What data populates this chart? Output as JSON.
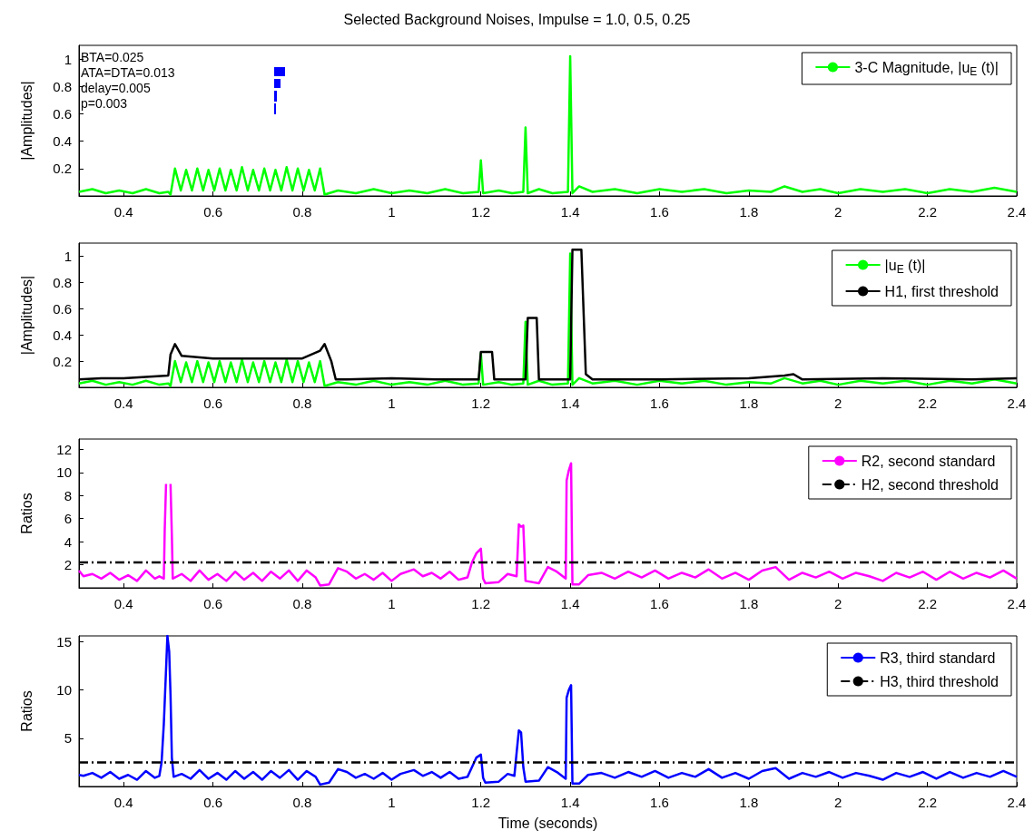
{
  "chart_data": [
    {
      "type": "line",
      "title": "Selected Background Noises, Impulse = 1.0, 0.5, 0.25",
      "ylabel": "|Amplitudes|",
      "annotations": [
        "BTA=0.025",
        "ATA=DTA=0.013",
        "delay=0.005",
        "p=0.003"
      ],
      "legend": "top right",
      "marker": "none",
      "line_style": "solid",
      "grid": false,
      "xlim": [
        0.3,
        2.4
      ],
      "ylim": [
        0,
        1.1
      ],
      "xticks": [
        0.4,
        0.6,
        0.8,
        1,
        1.2,
        1.4,
        1.6,
        1.8,
        2,
        2.2,
        2.4
      ],
      "yticks": [
        0.2,
        0.4,
        0.6,
        0.8,
        1
      ],
      "series": [
        {
          "name": "3-C Magnitude, |u$_{E}$ (t)|",
          "color": "#00ff00",
          "x": [
            0.3,
            0.33,
            0.36,
            0.39,
            0.42,
            0.45,
            0.48,
            0.5,
            0.505,
            0.515,
            0.528,
            0.54,
            0.553,
            0.565,
            0.578,
            0.59,
            0.603,
            0.615,
            0.628,
            0.64,
            0.653,
            0.665,
            0.678,
            0.69,
            0.703,
            0.715,
            0.728,
            0.74,
            0.753,
            0.765,
            0.778,
            0.79,
            0.803,
            0.815,
            0.828,
            0.84,
            0.85,
            0.88,
            0.92,
            0.96,
            1.0,
            1.04,
            1.08,
            1.12,
            1.16,
            1.195,
            1.2,
            1.205,
            1.24,
            1.27,
            1.295,
            1.3,
            1.305,
            1.33,
            1.36,
            1.395,
            1.4,
            1.405,
            1.42,
            1.45,
            1.5,
            1.55,
            1.6,
            1.65,
            1.7,
            1.75,
            1.8,
            1.85,
            1.88,
            1.92,
            1.96,
            2.0,
            2.05,
            2.1,
            2.15,
            2.2,
            2.25,
            2.3,
            2.35,
            2.4
          ],
          "values": [
            0.03,
            0.05,
            0.02,
            0.04,
            0.02,
            0.05,
            0.02,
            0.03,
            0.01,
            0.2,
            0.04,
            0.19,
            0.04,
            0.2,
            0.04,
            0.19,
            0.04,
            0.2,
            0.04,
            0.19,
            0.04,
            0.21,
            0.04,
            0.19,
            0.04,
            0.2,
            0.04,
            0.19,
            0.04,
            0.21,
            0.04,
            0.2,
            0.04,
            0.19,
            0.04,
            0.2,
            0.01,
            0.04,
            0.02,
            0.05,
            0.02,
            0.04,
            0.02,
            0.05,
            0.02,
            0.03,
            0.26,
            0.02,
            0.04,
            0.02,
            0.03,
            0.5,
            0.02,
            0.05,
            0.02,
            0.03,
            1.02,
            0.02,
            0.07,
            0.03,
            0.05,
            0.02,
            0.05,
            0.03,
            0.05,
            0.02,
            0.04,
            0.03,
            0.07,
            0.03,
            0.05,
            0.02,
            0.05,
            0.03,
            0.05,
            0.02,
            0.05,
            0.03,
            0.06,
            0.03
          ]
        }
      ]
    },
    {
      "type": "line",
      "ylabel": "|Amplitudes|",
      "legend": "top right",
      "marker": "none",
      "line_style": "solid",
      "grid": false,
      "xlim": [
        0.3,
        2.4
      ],
      "ylim": [
        0,
        1.1
      ],
      "xticks": [
        0.4,
        0.6,
        0.8,
        1,
        1.2,
        1.4,
        1.6,
        1.8,
        2,
        2.2,
        2.4
      ],
      "yticks": [
        0.2,
        0.4,
        0.6,
        0.8,
        1
      ],
      "series": [
        {
          "name": "|u$_{E}$ (t)|",
          "color": "#00ff00",
          "x": [
            0.3,
            0.33,
            0.36,
            0.39,
            0.42,
            0.45,
            0.48,
            0.5,
            0.505,
            0.515,
            0.528,
            0.54,
            0.553,
            0.565,
            0.578,
            0.59,
            0.603,
            0.615,
            0.628,
            0.64,
            0.653,
            0.665,
            0.678,
            0.69,
            0.703,
            0.715,
            0.728,
            0.74,
            0.753,
            0.765,
            0.778,
            0.79,
            0.803,
            0.815,
            0.828,
            0.84,
            0.85,
            0.88,
            0.92,
            0.96,
            1.0,
            1.04,
            1.08,
            1.12,
            1.16,
            1.195,
            1.2,
            1.205,
            1.24,
            1.27,
            1.295,
            1.3,
            1.305,
            1.33,
            1.36,
            1.395,
            1.4,
            1.405,
            1.42,
            1.45,
            1.5,
            1.55,
            1.6,
            1.65,
            1.7,
            1.75,
            1.8,
            1.85,
            1.88,
            1.92,
            1.96,
            2.0,
            2.05,
            2.1,
            2.15,
            2.2,
            2.25,
            2.3,
            2.35,
            2.4
          ],
          "values": [
            0.03,
            0.05,
            0.02,
            0.04,
            0.02,
            0.05,
            0.02,
            0.03,
            0.01,
            0.2,
            0.04,
            0.19,
            0.04,
            0.2,
            0.04,
            0.19,
            0.04,
            0.2,
            0.04,
            0.19,
            0.04,
            0.21,
            0.04,
            0.19,
            0.04,
            0.2,
            0.04,
            0.19,
            0.04,
            0.21,
            0.04,
            0.2,
            0.04,
            0.19,
            0.04,
            0.2,
            0.01,
            0.04,
            0.02,
            0.05,
            0.02,
            0.04,
            0.02,
            0.05,
            0.02,
            0.03,
            0.26,
            0.02,
            0.04,
            0.02,
            0.03,
            0.5,
            0.02,
            0.05,
            0.02,
            0.03,
            1.02,
            0.02,
            0.07,
            0.03,
            0.05,
            0.02,
            0.05,
            0.03,
            0.05,
            0.02,
            0.04,
            0.03,
            0.07,
            0.03,
            0.05,
            0.02,
            0.05,
            0.03,
            0.05,
            0.02,
            0.05,
            0.03,
            0.06,
            0.03
          ]
        },
        {
          "name": "H1, first threshold",
          "color": "#000000",
          "x": [
            0.3,
            0.35,
            0.4,
            0.45,
            0.5,
            0.505,
            0.515,
            0.53,
            0.6,
            0.7,
            0.8,
            0.84,
            0.85,
            0.865,
            0.875,
            0.9,
            1.0,
            1.1,
            1.195,
            1.2,
            1.225,
            1.23,
            1.3,
            1.305,
            1.325,
            1.33,
            1.4,
            1.405,
            1.425,
            1.435,
            1.45,
            1.6,
            1.8,
            1.88,
            1.9,
            1.92,
            2.1,
            2.3,
            2.4
          ],
          "values": [
            0.06,
            0.07,
            0.07,
            0.08,
            0.09,
            0.25,
            0.33,
            0.24,
            0.22,
            0.22,
            0.22,
            0.28,
            0.33,
            0.2,
            0.06,
            0.06,
            0.07,
            0.06,
            0.06,
            0.27,
            0.27,
            0.06,
            0.06,
            0.53,
            0.53,
            0.06,
            0.06,
            1.05,
            1.05,
            0.1,
            0.06,
            0.06,
            0.07,
            0.09,
            0.1,
            0.06,
            0.07,
            0.06,
            0.07
          ]
        }
      ]
    },
    {
      "type": "line",
      "ylabel": "Ratios",
      "legend": "top right",
      "marker": "none",
      "line_style": "solid",
      "grid": false,
      "xlim": [
        0.3,
        2.4
      ],
      "ylim": [
        0,
        12.9
      ],
      "xticks": [
        0.4,
        0.6,
        0.8,
        1,
        1.2,
        1.4,
        1.6,
        1.8,
        2,
        2.2,
        2.4
      ],
      "yticks": [
        2,
        4,
        6,
        8,
        10,
        12
      ],
      "series": [
        {
          "name": "R2, second standard",
          "color": "#ff00ff",
          "x": [
            0.3,
            0.31,
            0.33,
            0.35,
            0.37,
            0.39,
            0.41,
            0.43,
            0.45,
            0.47,
            0.48,
            0.49,
            0.492,
            0.495,
            0.498,
            0.503,
            0.505,
            0.508,
            0.51,
            0.53,
            0.55,
            0.57,
            0.59,
            0.61,
            0.63,
            0.65,
            0.67,
            0.69,
            0.71,
            0.73,
            0.75,
            0.77,
            0.79,
            0.81,
            0.83,
            0.84,
            0.86,
            0.88,
            0.9,
            0.92,
            0.94,
            0.96,
            0.98,
            1.0,
            1.02,
            1.05,
            1.07,
            1.09,
            1.11,
            1.13,
            1.15,
            1.17,
            1.18,
            1.19,
            1.2,
            1.205,
            1.21,
            1.24,
            1.26,
            1.28,
            1.285,
            1.29,
            1.295,
            1.3,
            1.33,
            1.35,
            1.37,
            1.39,
            1.392,
            1.397,
            1.402,
            1.405,
            1.42,
            1.44,
            1.47,
            1.5,
            1.53,
            1.56,
            1.59,
            1.62,
            1.65,
            1.68,
            1.71,
            1.74,
            1.77,
            1.8,
            1.83,
            1.86,
            1.89,
            1.92,
            1.95,
            1.98,
            2.01,
            2.04,
            2.07,
            2.1,
            2.13,
            2.16,
            2.19,
            2.22,
            2.25,
            2.28,
            2.31,
            2.34,
            2.37,
            2.4
          ],
          "values": [
            1.5,
            1.0,
            1.2,
            0.8,
            1.3,
            0.7,
            1.1,
            0.6,
            1.5,
            0.8,
            1.0,
            0.8,
            5,
            9,
            null,
            null,
            9,
            4.5,
            0.8,
            1.2,
            0.6,
            1.5,
            0.7,
            1.2,
            0.6,
            1.4,
            0.7,
            1.3,
            0.6,
            1.4,
            0.8,
            1.5,
            0.6,
            1.5,
            0.9,
            0.2,
            0.3,
            1.7,
            1.4,
            0.8,
            1.2,
            0.7,
            1.3,
            0.6,
            1.2,
            1.6,
            1.0,
            1.3,
            0.8,
            1.4,
            0.7,
            0.9,
            2.2,
            3.0,
            3.4,
            0.8,
            0.4,
            0.5,
            1.2,
            1.0,
            5.5,
            5.3,
            5.4,
            0.6,
            0.4,
            1.8,
            1.4,
            0.8,
            9.3,
            10.2,
            10.8,
            0.3,
            0.3,
            1.1,
            1.3,
            0.8,
            1.4,
            0.9,
            1.5,
            0.8,
            1.3,
            0.9,
            1.6,
            0.8,
            1.3,
            0.7,
            1.5,
            1.8,
            0.7,
            1.3,
            0.9,
            1.4,
            0.8,
            1.3,
            1.0,
            0.6,
            1.3,
            0.9,
            1.4,
            0.7,
            1.4,
            0.8,
            1.3,
            0.9,
            1.5,
            0.8
          ]
        },
        {
          "name": "H2, second threshold",
          "color": "#000000",
          "line_style": "dashed",
          "x": [
            0.3,
            2.4
          ],
          "values": [
            2.2,
            2.2
          ]
        }
      ]
    },
    {
      "type": "line",
      "ylabel": "Ratios",
      "xlabel": "Time (seconds)",
      "legend": "top right",
      "marker": "none",
      "line_style": "solid",
      "grid": false,
      "xlim": [
        0.3,
        2.4
      ],
      "ylim": [
        0,
        15.6
      ],
      "xticks": [
        0.4,
        0.6,
        0.8,
        1,
        1.2,
        1.4,
        1.6,
        1.8,
        2,
        2.2,
        2.4
      ],
      "yticks": [
        5,
        10,
        15
      ],
      "series": [
        {
          "name": "R3, third standard",
          "color": "#0000ff",
          "x": [
            0.3,
            0.31,
            0.33,
            0.35,
            0.37,
            0.39,
            0.41,
            0.43,
            0.45,
            0.47,
            0.48,
            0.485,
            0.49,
            0.494,
            0.498,
            0.502,
            0.505,
            0.508,
            0.512,
            0.53,
            0.55,
            0.57,
            0.59,
            0.61,
            0.63,
            0.65,
            0.67,
            0.69,
            0.71,
            0.73,
            0.75,
            0.77,
            0.79,
            0.81,
            0.83,
            0.84,
            0.86,
            0.88,
            0.9,
            0.92,
            0.94,
            0.96,
            0.98,
            1.0,
            1.02,
            1.05,
            1.07,
            1.09,
            1.11,
            1.13,
            1.15,
            1.17,
            1.18,
            1.19,
            1.2,
            1.205,
            1.21,
            1.24,
            1.26,
            1.275,
            1.28,
            1.285,
            1.29,
            1.295,
            1.3,
            1.33,
            1.35,
            1.37,
            1.39,
            1.392,
            1.397,
            1.402,
            1.405,
            1.42,
            1.44,
            1.47,
            1.5,
            1.53,
            1.56,
            1.59,
            1.62,
            1.65,
            1.68,
            1.71,
            1.74,
            1.77,
            1.8,
            1.83,
            1.86,
            1.89,
            1.92,
            1.95,
            1.98,
            2.01,
            2.04,
            2.07,
            2.1,
            2.13,
            2.16,
            2.19,
            2.22,
            2.25,
            2.28,
            2.31,
            2.34,
            2.37,
            2.4
          ],
          "values": [
            1.2,
            1.1,
            1.4,
            0.9,
            1.5,
            0.8,
            1.2,
            0.7,
            1.6,
            0.9,
            1.1,
            2.5,
            6.5,
            11,
            15.6,
            14,
            9.5,
            3,
            1.0,
            1.3,
            0.8,
            1.7,
            0.8,
            1.4,
            0.7,
            1.6,
            0.8,
            1.5,
            0.7,
            1.6,
            0.9,
            1.7,
            0.7,
            1.6,
            1.0,
            0.2,
            0.4,
            1.8,
            1.5,
            0.9,
            1.3,
            0.8,
            1.4,
            0.7,
            1.3,
            1.7,
            1.1,
            1.5,
            0.9,
            1.5,
            0.8,
            1.0,
            2.0,
            3.0,
            3.3,
            0.9,
            0.4,
            0.5,
            1.3,
            1.1,
            3.5,
            5.8,
            5.6,
            2.0,
            0.5,
            0.6,
            2.0,
            1.5,
            0.8,
            9.2,
            10.0,
            10.5,
            0.3,
            0.3,
            1.2,
            1.4,
            0.9,
            1.5,
            1.0,
            1.6,
            0.9,
            1.4,
            1.0,
            1.8,
            0.9,
            1.4,
            0.8,
            1.6,
            1.9,
            0.8,
            1.4,
            1.0,
            1.5,
            0.9,
            1.4,
            1.1,
            0.7,
            1.4,
            1.0,
            1.5,
            0.8,
            1.5,
            0.9,
            1.4,
            1.0,
            1.6,
            1.0
          ]
        },
        {
          "name": "H3, third threshold",
          "color": "#000000",
          "line_style": "dashed",
          "x": [
            0.3,
            2.4
          ],
          "values": [
            2.5,
            2.5
          ]
        }
      ]
    }
  ]
}
